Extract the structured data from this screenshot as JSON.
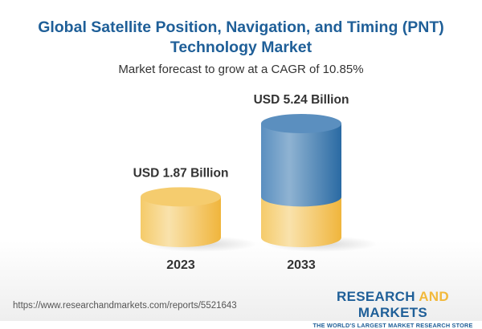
{
  "chart_data": {
    "type": "bar",
    "style": "3d-cylinder",
    "title": "Global Satellite Position, Navigation, and Timing (PNT) Technology Market",
    "subtitle": "Market forecast to grow at a CAGR of 10.85%",
    "categories": [
      "2023",
      "2033"
    ],
    "values": [
      1.87,
      5.24
    ],
    "unit": "USD Billion",
    "data_labels": [
      "USD 1.87 Billion",
      "USD 5.24 Billion"
    ],
    "colors": {
      "base": "#f2c35a",
      "growth": "#3f7bb0"
    }
  },
  "footer": {
    "url": "https://www.researchandmarkets.com/reports/5521643",
    "logo_part1": "RESEARCH ",
    "logo_part2": "AND",
    "logo_part3": " MARKETS",
    "tagline": "THE WORLD'S LARGEST MARKET RESEARCH STORE"
  }
}
